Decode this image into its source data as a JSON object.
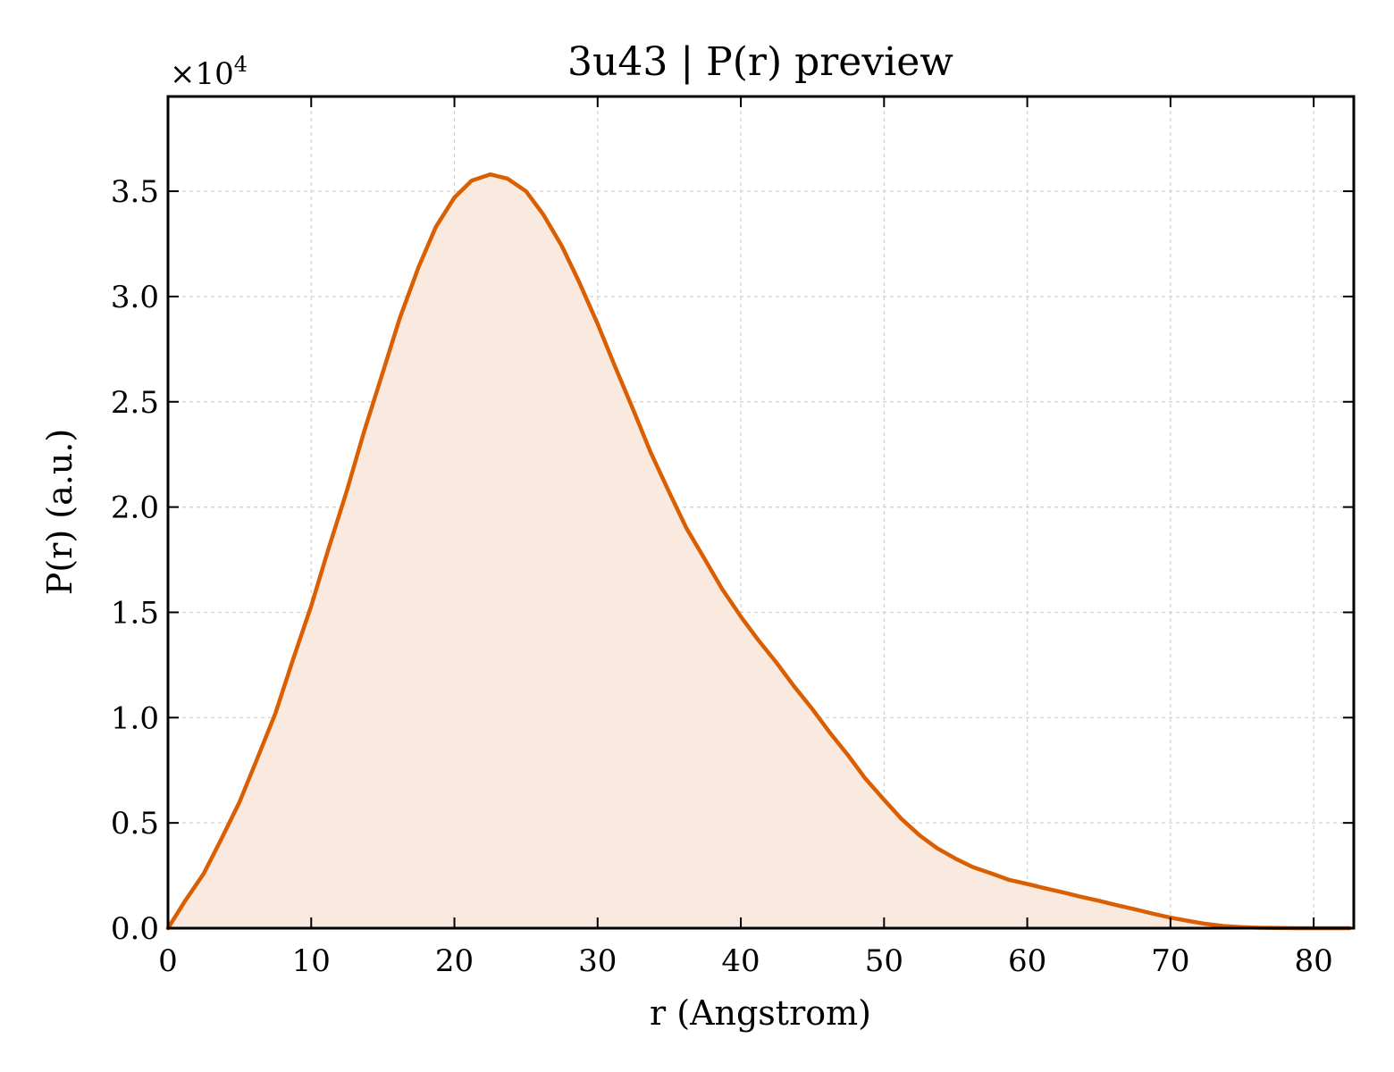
{
  "chart_data": {
    "type": "area",
    "title": "3u43 | P(r) preview",
    "xlabel": "r (Angstrom)",
    "ylabel": "P(r) (a.u.)",
    "y_multiplier_prefix": "×10",
    "y_multiplier_exponent": "4",
    "xlim": [
      0,
      82.8
    ],
    "ylim": [
      0,
      3.95
    ],
    "x_ticks": [
      0,
      10,
      20,
      30,
      40,
      50,
      60,
      70,
      80
    ],
    "x_tick_labels": [
      "0",
      "10",
      "20",
      "30",
      "40",
      "50",
      "60",
      "70",
      "80"
    ],
    "y_ticks": [
      0,
      0.5,
      1.0,
      1.5,
      2.0,
      2.5,
      3.0,
      3.5
    ],
    "y_tick_labels": [
      "0.0",
      "0.5",
      "1.0",
      "1.5",
      "2.0",
      "2.5",
      "3.0",
      "3.5"
    ],
    "grid": true,
    "line_color": "#d95f02",
    "fill_color": "#f9e9de",
    "x": [
      0,
      1.2,
      2.5,
      3.7,
      5,
      6.2,
      7.5,
      8.7,
      10,
      11.2,
      12.5,
      13.7,
      15,
      16.2,
      17.5,
      18.7,
      20,
      21.2,
      22.5,
      23.7,
      25,
      26.2,
      27.5,
      28.7,
      30,
      31.2,
      32.5,
      33.7,
      35,
      36.2,
      37.5,
      38.7,
      40,
      41.2,
      42.5,
      43.7,
      45,
      46.2,
      47.5,
      48.7,
      50,
      51.2,
      52.5,
      53.7,
      55,
      56.2,
      57.5,
      58.7,
      60,
      61.2,
      62.5,
      63.7,
      65,
      66.2,
      67.5,
      68.7,
      70,
      71.2,
      72.5,
      73.7,
      75,
      76.2,
      77.5,
      78.7,
      80,
      81.2,
      82.5
    ],
    "y": [
      0,
      0.13,
      0.26,
      0.42,
      0.6,
      0.8,
      1.02,
      1.27,
      1.53,
      1.8,
      2.08,
      2.36,
      2.64,
      2.9,
      3.14,
      3.33,
      3.47,
      3.55,
      3.58,
      3.56,
      3.5,
      3.39,
      3.24,
      3.07,
      2.87,
      2.67,
      2.46,
      2.26,
      2.07,
      1.9,
      1.75,
      1.61,
      1.48,
      1.37,
      1.26,
      1.15,
      1.04,
      0.93,
      0.82,
      0.71,
      0.61,
      0.52,
      0.44,
      0.38,
      0.33,
      0.29,
      0.26,
      0.23,
      0.21,
      0.19,
      0.17,
      0.15,
      0.13,
      0.11,
      0.09,
      0.07,
      0.05,
      0.035,
      0.02,
      0.01,
      0.005,
      0.002,
      0.001,
      0,
      0,
      0,
      0
    ]
  }
}
